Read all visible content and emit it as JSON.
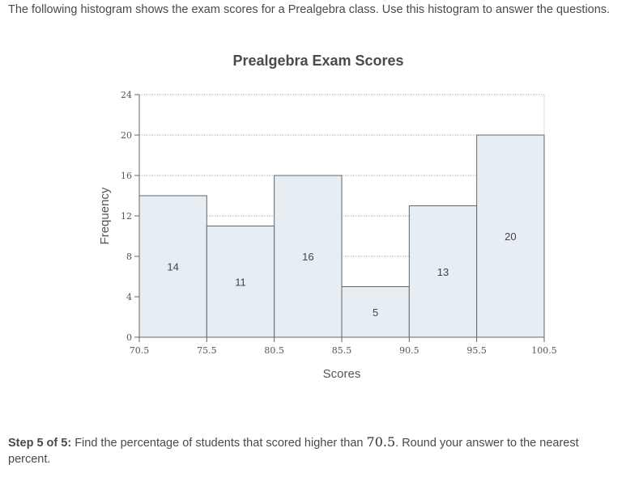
{
  "intro_text": "The following histogram shows the exam scores for a Prealgebra class. Use this histogram to answer the questions.",
  "chart_data": {
    "type": "bar",
    "title": "Prealgebra Exam Scores",
    "xlabel": "Scores",
    "ylabel": "Frequency",
    "bin_edges": [
      "70.5",
      "75.5",
      "80.5",
      "85.5",
      "90.5",
      "95.5",
      "100.5"
    ],
    "values": [
      14,
      11,
      16,
      5,
      13,
      20
    ],
    "xlim": [
      70.5,
      100.5
    ],
    "ylim": [
      0,
      24
    ],
    "yticks": [
      "0",
      "4",
      "8",
      "12",
      "16",
      "20",
      "24"
    ],
    "grid": true,
    "bar_fill": "#e6edf3",
    "bar_stroke": "#666666"
  },
  "question": {
    "step_label": "Step 5 of 5:",
    "text_before": "Find the percentage of students that scored higher than",
    "value": "70.5",
    "text_after": ". Round your answer to the nearest percent."
  }
}
